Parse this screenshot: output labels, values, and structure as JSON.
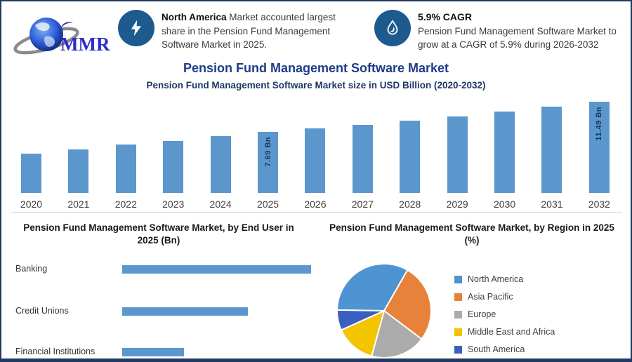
{
  "page": {
    "border_color": "#1F3864",
    "background": "#FFFFFF"
  },
  "logo": {
    "text": "MMR",
    "text_color": "#2B2BCB"
  },
  "header": {
    "callout1": {
      "icon": "lightning-icon",
      "icon_bg": "#1D5B8E",
      "bold_text": "North America",
      "text": " Market accounted largest share in the Pension Fund Management Software Market in 2025."
    },
    "callout2": {
      "icon": "flame-icon",
      "icon_bg": "#1D5B8E",
      "title": "5.9% CAGR",
      "text": "Pension Fund Management Software Market to grow at a CAGR of 5.9% during 2026-2032"
    }
  },
  "titles": {
    "main": "Pension Fund Management Software Market",
    "sub": "Pension Fund Management Software Market size in USD Billion (2020-2032)"
  },
  "chart_data": [
    {
      "id": "market-size-by-year",
      "type": "bar",
      "title": "Pension Fund Management Software Market size in USD Billion (2020-2032)",
      "categories": [
        "2020",
        "2021",
        "2022",
        "2023",
        "2024",
        "2025",
        "2026",
        "2027",
        "2028",
        "2029",
        "2030",
        "2031",
        "2032"
      ],
      "values": [
        4.93,
        5.52,
        6.06,
        6.57,
        7.19,
        7.69,
        8.14,
        8.62,
        9.13,
        9.67,
        10.24,
        10.84,
        11.49
      ],
      "point_labels": [
        "",
        "",
        "",
        "",
        "",
        "7.69 Bn",
        "",
        "",
        "",
        "",
        "",
        "",
        "11.49 Bn"
      ],
      "bar_color": "#5B97CD",
      "value_label_color": "#17375E",
      "ylim": [
        0,
        11.49
      ],
      "grid": false,
      "legend": "none"
    },
    {
      "id": "by-end-user",
      "type": "bar",
      "orientation": "horizontal",
      "title": "Pension Fund Management Software Market, by End User in 2025 (Bn)",
      "title_lines": [
        "Pension Fund Management Software Market, by End User in",
        "2025 (Bn)"
      ],
      "categories": [
        "Banking",
        "Credit Unions",
        "Financial Institutions"
      ],
      "values": [
        3.86,
        2.57,
        1.26
      ],
      "bar_color": "#5B97CD",
      "grid": false,
      "legend": "none"
    },
    {
      "id": "by-region",
      "type": "pie",
      "title": "Pension Fund Management Software Market, by Region in 2025 (%)",
      "title_lines": [
        "Pension Fund Management Software Market, by Region in 2025",
        "(%)"
      ],
      "labels": [
        "North America",
        "Asia Pacific",
        "Europe",
        "Middle East and Africa",
        "South America"
      ],
      "values": [
        33,
        27,
        19,
        14,
        7
      ],
      "colors": [
        "#4E94D3",
        "#E8813A",
        "#ABABAB",
        "#F2C500",
        "#3B5FC1"
      ],
      "start_angle_deg": 271,
      "legend_position": "right"
    }
  ]
}
